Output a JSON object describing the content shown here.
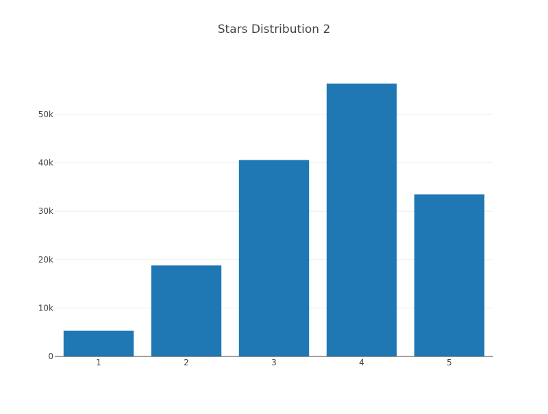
{
  "chart_data": {
    "type": "bar",
    "title": "Stars Distribution 2",
    "xlabel": "",
    "ylabel": "",
    "categories": [
      "1",
      "2",
      "3",
      "4",
      "5"
    ],
    "values": [
      5300,
      18800,
      40600,
      56400,
      33500
    ],
    "ylim": [
      0,
      59500
    ],
    "yticks": [
      0,
      10000,
      20000,
      30000,
      40000,
      50000
    ],
    "ytick_labels": [
      "0",
      "10k",
      "20k",
      "30k",
      "40k",
      "50k"
    ],
    "grid": true,
    "bar_color": "#1f77b4",
    "grid_color": "#eeeeee",
    "axis_color": "#444444",
    "text_color": "#444444"
  }
}
